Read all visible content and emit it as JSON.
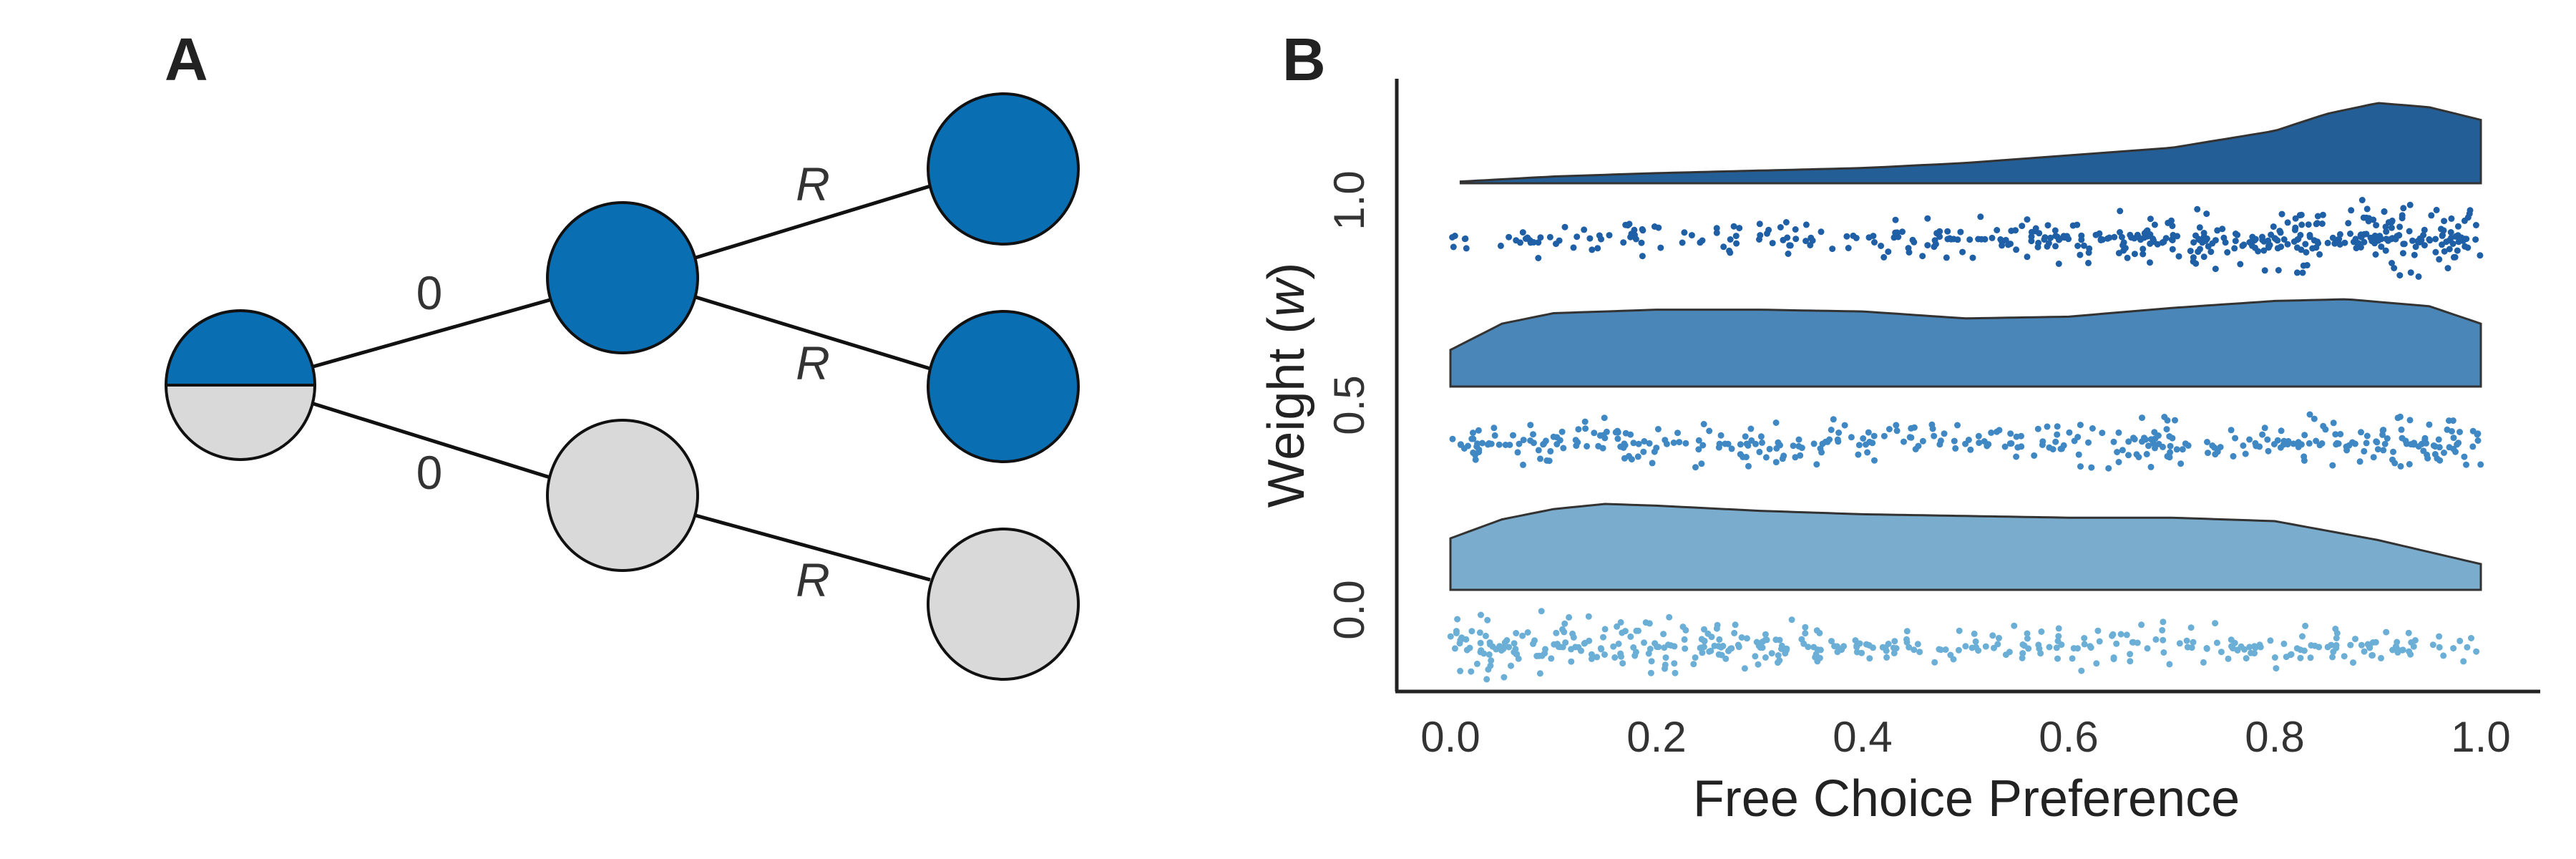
{
  "panel_a": {
    "letter": "A",
    "colors": {
      "filled": "#0a6eb3",
      "empty": "#d9d9d9",
      "stroke": "#111111"
    },
    "edge_labels": [
      "0",
      "0",
      "R",
      "R",
      "R"
    ]
  },
  "panel_b": {
    "letter": "B"
  },
  "chart_data": {
    "type": "raincloud",
    "xlabel": "Free Choice Preference",
    "ylabel": "Weight (",
    "ylabel_var": "w",
    "ylabel_end": ")",
    "xlim": [
      0.0,
      1.0
    ],
    "xticks": [
      "0.0",
      "0.2",
      "0.4",
      "0.6",
      "0.8",
      "1.0"
    ],
    "yticks": [
      "1.0",
      "0.5",
      "0.0"
    ],
    "series": [
      {
        "name": "1.0",
        "cloud_color": "#235e97",
        "dot_color": "#1f5fa6",
        "density": [
          [
            0.01,
            0.02
          ],
          [
            0.1,
            0.08
          ],
          [
            0.2,
            0.12
          ],
          [
            0.3,
            0.15
          ],
          [
            0.4,
            0.18
          ],
          [
            0.5,
            0.24
          ],
          [
            0.6,
            0.33
          ],
          [
            0.7,
            0.42
          ],
          [
            0.8,
            0.62
          ],
          [
            0.85,
            0.82
          ],
          [
            0.9,
            0.95
          ],
          [
            0.95,
            0.9
          ],
          [
            1.0,
            0.75
          ]
        ],
        "dot_weights": [
          [
            0.01,
            0.2
          ],
          [
            0.1,
            0.3
          ],
          [
            0.2,
            0.35
          ],
          [
            0.3,
            0.3
          ],
          [
            0.4,
            0.35
          ],
          [
            0.5,
            0.45
          ],
          [
            0.6,
            0.6
          ],
          [
            0.7,
            0.75
          ],
          [
            0.8,
            0.9
          ],
          [
            0.9,
            1.0
          ],
          [
            1.0,
            0.85
          ]
        ],
        "n_dots": 460
      },
      {
        "name": "0.5",
        "cloud_color": "#4a86b8",
        "dot_color": "#3f88c4",
        "density": [
          [
            0.0,
            0.42
          ],
          [
            0.05,
            0.72
          ],
          [
            0.1,
            0.84
          ],
          [
            0.2,
            0.88
          ],
          [
            0.3,
            0.88
          ],
          [
            0.4,
            0.86
          ],
          [
            0.5,
            0.78
          ],
          [
            0.6,
            0.8
          ],
          [
            0.7,
            0.9
          ],
          [
            0.8,
            0.98
          ],
          [
            0.87,
            1.0
          ],
          [
            0.95,
            0.92
          ],
          [
            1.0,
            0.72
          ]
        ],
        "dot_weights": [
          [
            0.0,
            0.5
          ],
          [
            0.1,
            0.6
          ],
          [
            0.2,
            0.6
          ],
          [
            0.3,
            0.58
          ],
          [
            0.4,
            0.55
          ],
          [
            0.5,
            0.5
          ],
          [
            0.6,
            0.52
          ],
          [
            0.7,
            0.6
          ],
          [
            0.8,
            0.65
          ],
          [
            0.9,
            0.8
          ],
          [
            1.0,
            0.7
          ]
        ],
        "n_dots": 390
      },
      {
        "name": "0.0",
        "cloud_color": "#7aaccd",
        "dot_color": "#6baed6",
        "density": [
          [
            0.0,
            0.6
          ],
          [
            0.05,
            0.82
          ],
          [
            0.1,
            0.94
          ],
          [
            0.15,
            1.0
          ],
          [
            0.2,
            0.98
          ],
          [
            0.3,
            0.92
          ],
          [
            0.4,
            0.88
          ],
          [
            0.5,
            0.86
          ],
          [
            0.6,
            0.84
          ],
          [
            0.7,
            0.84
          ],
          [
            0.8,
            0.8
          ],
          [
            0.9,
            0.58
          ],
          [
            1.0,
            0.3
          ]
        ],
        "dot_weights": [
          [
            0.0,
            0.85
          ],
          [
            0.1,
            1.0
          ],
          [
            0.2,
            0.85
          ],
          [
            0.3,
            0.65
          ],
          [
            0.4,
            0.6
          ],
          [
            0.5,
            0.58
          ],
          [
            0.6,
            0.55
          ],
          [
            0.7,
            0.55
          ],
          [
            0.8,
            0.6
          ],
          [
            0.9,
            0.45
          ],
          [
            1.0,
            0.3
          ]
        ],
        "n_dots": 400
      }
    ]
  }
}
